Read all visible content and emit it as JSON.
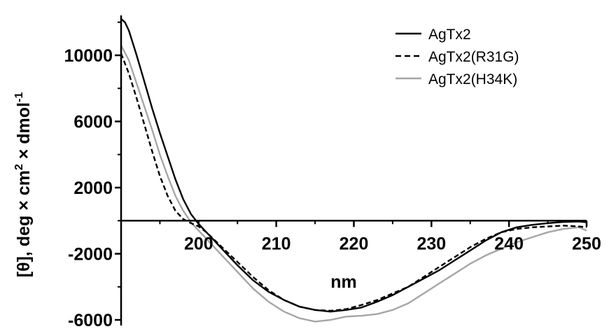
{
  "chart_data": {
    "type": "line",
    "title": "",
    "xlabel": "nm",
    "ylabel": "[θ], deg × cm² × dmol⁻¹",
    "ylabel_parts": {
      "main": "[θ], deg × cm",
      "sup1": "2",
      "mid": " × dmol",
      "sup2": "-1"
    },
    "xlim": [
      190,
      250
    ],
    "ylim": [
      -6500,
      12500
    ],
    "x_ticks": [
      200,
      210,
      220,
      230,
      240,
      250
    ],
    "x_tick_labels": [
      "200",
      "210",
      "220",
      "230",
      "240",
      "250"
    ],
    "y_ticks": [
      -6000,
      -2000,
      2000,
      6000,
      10000
    ],
    "y_tick_labels": [
      "-6000",
      "-2000",
      "2000",
      "6000",
      "10000"
    ],
    "grid": false,
    "legend_position": "top-right",
    "series": [
      {
        "name": "AgTx2",
        "color": "#000000",
        "dash": "solid",
        "x": [
          190,
          190.5,
          191,
          192,
          193,
          194,
          195,
          196,
          197,
          198,
          199,
          200,
          201,
          202,
          203,
          205,
          207,
          209,
          211,
          213,
          215,
          217,
          219,
          221,
          223,
          225,
          227,
          229,
          231,
          233,
          235,
          237,
          239,
          241,
          243,
          245,
          247,
          249,
          250
        ],
        "y": [
          12200,
          12000,
          11500,
          10000,
          8400,
          6800,
          5300,
          3900,
          2500,
          1300,
          400,
          -200,
          -700,
          -1200,
          -1700,
          -2700,
          -3600,
          -4300,
          -4800,
          -5200,
          -5400,
          -5500,
          -5400,
          -5250,
          -4900,
          -4500,
          -4000,
          -3500,
          -3000,
          -2400,
          -1800,
          -1200,
          -700,
          -400,
          -250,
          -150,
          -80,
          -50,
          -100
        ]
      },
      {
        "name": "AgTx2(R31G)",
        "color": "#000000",
        "dash": "dashed",
        "x": [
          190,
          191,
          192,
          193,
          194,
          195,
          196,
          197,
          198,
          199,
          200,
          201,
          203,
          205,
          207,
          209,
          211,
          213,
          215,
          217,
          219,
          221,
          223,
          225,
          227,
          229,
          231,
          233,
          235,
          237,
          239,
          241,
          243,
          245,
          247,
          249,
          250
        ],
        "y": [
          10100,
          8900,
          7400,
          5800,
          4200,
          2700,
          1500,
          600,
          100,
          -150,
          -350,
          -700,
          -1600,
          -2500,
          -3400,
          -4200,
          -4800,
          -5200,
          -5400,
          -5450,
          -5350,
          -5100,
          -4800,
          -4400,
          -4000,
          -3400,
          -2800,
          -2200,
          -1600,
          -1100,
          -700,
          -500,
          -400,
          -350,
          -300,
          -350,
          -400
        ]
      },
      {
        "name": "AgTx2(H34K)",
        "color": "#a6a6a6",
        "dash": "solid",
        "x": [
          190,
          191,
          192,
          193,
          194,
          195,
          196,
          197,
          198,
          199,
          200,
          201,
          203,
          205,
          207,
          209,
          211,
          213,
          215,
          217,
          219,
          221,
          223,
          225,
          227,
          229,
          231,
          233,
          235,
          237,
          239,
          241,
          243,
          245,
          247,
          249,
          250
        ],
        "y": [
          10600,
          9700,
          8300,
          6900,
          5500,
          4000,
          2700,
          1500,
          600,
          -100,
          -600,
          -1100,
          -2100,
          -3100,
          -4100,
          -4900,
          -5500,
          -5900,
          -6100,
          -6000,
          -5800,
          -5750,
          -5650,
          -5400,
          -5000,
          -4400,
          -3800,
          -3200,
          -2600,
          -2100,
          -1700,
          -1300,
          -1000,
          -700,
          -500,
          -400,
          -600
        ]
      }
    ]
  }
}
